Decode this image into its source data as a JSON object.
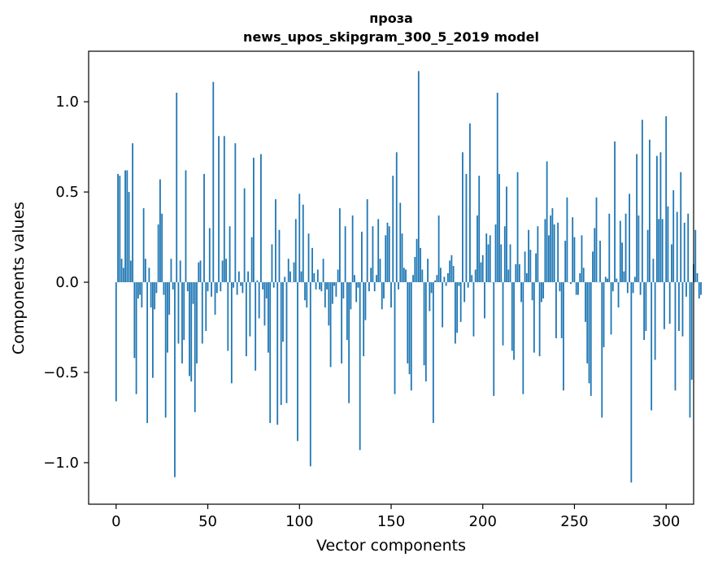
{
  "chart_data": {
    "type": "bar",
    "title_line1": "проза",
    "title_line2": "news_upos_skipgram_300_5_2019 model",
    "xlabel": "Vector components",
    "ylabel": "Components values",
    "xlim": [
      -15,
      315
    ],
    "ylim": [
      -1.23,
      1.28
    ],
    "xticks": [
      0,
      50,
      100,
      150,
      200,
      250,
      300
    ],
    "xtick_labels": [
      "0",
      "50",
      "100",
      "150",
      "200",
      "250",
      "300"
    ],
    "yticks": [
      1.0,
      0.5,
      0.0,
      -0.5,
      -1.0
    ],
    "ytick_labels": [
      "1.0",
      "0.5",
      "0.0",
      "−0.5",
      "−1.0"
    ],
    "bar_color": "#1f77b4",
    "series": [
      {
        "name": "components",
        "values": [
          -0.66,
          0.6,
          0.59,
          0.13,
          0.08,
          0.62,
          0.62,
          0.5,
          0.12,
          0.77,
          -0.42,
          -0.62,
          -0.09,
          -0.07,
          -0.14,
          0.41,
          0.13,
          -0.78,
          0.08,
          -0.14,
          -0.53,
          -0.15,
          -0.06,
          0.32,
          0.57,
          0.38,
          -0.07,
          -0.75,
          -0.39,
          -0.18,
          0.13,
          -0.04,
          -1.08,
          1.05,
          -0.34,
          0.12,
          -0.45,
          -0.32,
          0.62,
          -0.05,
          -0.52,
          -0.55,
          -0.12,
          -0.72,
          -0.45,
          0.11,
          0.12,
          -0.34,
          0.6,
          -0.27,
          -0.05,
          0.3,
          -0.08,
          1.11,
          -0.18,
          -0.06,
          0.81,
          -0.05,
          0.12,
          0.81,
          0.13,
          -0.38,
          0.31,
          -0.56,
          -0.03,
          0.77,
          -0.07,
          0.06,
          -0.02,
          -0.06,
          0.52,
          -0.41,
          0.06,
          -0.3,
          0.25,
          0.69,
          -0.49,
          0.01,
          -0.2,
          0.71,
          -0.04,
          -0.24,
          -0.09,
          -0.39,
          -0.78,
          0.21,
          -0.03,
          0.46,
          -0.79,
          0.29,
          -0.68,
          -0.33,
          0.03,
          -0.67,
          0.13,
          0.06,
          0.0,
          0.11,
          0.35,
          -0.88,
          0.49,
          0.06,
          0.43,
          -0.1,
          -0.14,
          0.27,
          -1.02,
          0.19,
          0.05,
          -0.04,
          0.07,
          -0.04,
          -0.05,
          0.13,
          -0.14,
          -0.04,
          -0.24,
          -0.47,
          -0.12,
          -0.02,
          -0.08,
          0.07,
          0.41,
          -0.45,
          -0.09,
          0.31,
          -0.32,
          -0.67,
          -0.15,
          0.37,
          0.04,
          -0.11,
          -0.03,
          -0.93,
          0.28,
          -0.41,
          -0.21,
          0.46,
          -0.05,
          0.08,
          0.31,
          -0.05,
          0.04,
          0.35,
          0.13,
          -0.15,
          -0.09,
          0.26,
          0.33,
          0.31,
          -0.14,
          0.59,
          -0.62,
          0.72,
          -0.04,
          0.44,
          0.27,
          0.08,
          0.07,
          -0.45,
          -0.51,
          -0.6,
          0.04,
          0.14,
          0.24,
          1.17,
          0.19,
          0.07,
          -0.46,
          -0.55,
          0.13,
          -0.16,
          -0.06,
          -0.78,
          0.01,
          0.04,
          0.37,
          0.08,
          -0.25,
          0.03,
          -0.02,
          0.05,
          0.12,
          0.15,
          0.09,
          -0.34,
          -0.28,
          -0.02,
          -0.22,
          0.72,
          -0.11,
          0.6,
          -0.03,
          0.88,
          0.04,
          -0.3,
          0.07,
          0.37,
          0.59,
          0.11,
          0.15,
          -0.2,
          0.27,
          0.21,
          0.26,
          0.0,
          -0.63,
          0.32,
          1.05,
          0.6,
          0.21,
          -0.35,
          0.31,
          0.53,
          0.07,
          0.21,
          -0.38,
          -0.43,
          0.1,
          0.61,
          0.1,
          -0.11,
          -0.62,
          0.17,
          0.05,
          0.29,
          0.18,
          -0.1,
          -0.39,
          0.16,
          0.31,
          -0.41,
          -0.11,
          -0.09,
          0.35,
          0.67,
          0.26,
          0.37,
          0.41,
          0.32,
          -0.31,
          0.33,
          -0.05,
          -0.31,
          -0.6,
          0.23,
          0.47,
          0.0,
          -0.01,
          0.36,
          0.25,
          -0.07,
          -0.07,
          0.05,
          0.26,
          0.08,
          -0.22,
          -0.45,
          -0.56,
          -0.63,
          0.17,
          0.3,
          0.47,
          0.0,
          0.23,
          -0.75,
          -0.36,
          0.03,
          0.02,
          0.38,
          -0.29,
          -0.05,
          0.78,
          0.02,
          -0.14,
          0.34,
          0.22,
          0.06,
          0.38,
          -0.06,
          0.49,
          -1.11,
          -0.06,
          0.03,
          0.71,
          0.37,
          -0.07,
          0.9,
          -0.32,
          -0.27,
          0.29,
          0.79,
          -0.71,
          0.13,
          -0.43,
          0.7,
          0.35,
          0.72,
          0.35,
          -0.26,
          0.92,
          0.42,
          -0.23,
          0.21,
          0.51,
          -0.6,
          0.39,
          -0.27,
          0.61,
          -0.3,
          0.33,
          -0.08,
          0.38,
          -0.75,
          -0.54,
          0.1,
          0.29,
          0.05,
          -0.09,
          -0.07
        ]
      }
    ]
  }
}
